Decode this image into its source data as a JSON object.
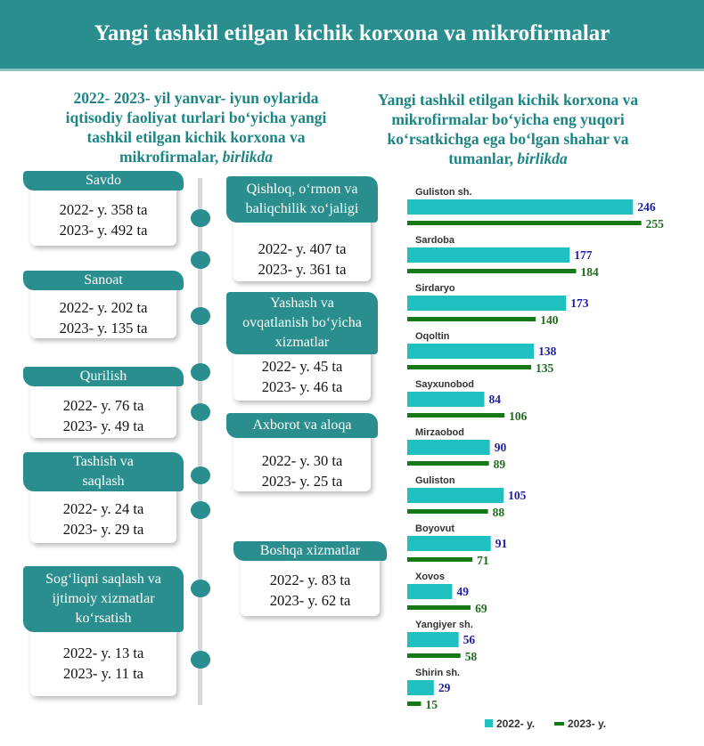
{
  "header": {
    "title": "Yangi tashkil etilgan kichik korxona va mikrofirmalar"
  },
  "left_heading": {
    "lines": [
      "2022- 2023- yil yanvar- iyun oylarida",
      "iqtisodiy faoliyat turlari bo‘yicha yangi",
      "tashkil etilgan kichik korxona va"
    ],
    "last_line": "mikrofirmalar,",
    "unit": "birlikda"
  },
  "right_heading": {
    "lines": [
      "Yangi tashkil etilgan kichik korxona va",
      "mikrofirmalar bo‘yicha eng yuqori",
      "ko‘rsatkichga ega bo‘lgan shahar va"
    ],
    "last_line": "tumanlar,",
    "unit": "birlikda"
  },
  "activities": [
    {
      "title": [
        "Savdo"
      ],
      "v2022": "2022- y. 358 ta",
      "v2023": "2023- y. 492 ta"
    },
    {
      "title": [
        "Qishloq, o‘rmon va",
        "baliqchilik xo‘jaligi"
      ],
      "v2022": "2022- y. 407 ta",
      "v2023": "2023- y. 361 ta"
    },
    {
      "title": [
        "Sanoat"
      ],
      "v2022": "2022- y. 202 ta",
      "v2023": "2023- y. 135 ta"
    },
    {
      "title": [
        "Yashash va",
        "ovqatlanish bo‘yicha",
        "xizmatlar"
      ],
      "v2022": "2022- y. 45 ta",
      "v2023": "2023- y. 46 ta"
    },
    {
      "title": [
        "Qurilish"
      ],
      "v2022": "2022- y. 76 ta",
      "v2023": "2023- y. 49 ta"
    },
    {
      "title": [
        "Axborot va aloqa"
      ],
      "v2022": "2022- y. 30 ta",
      "v2023": "2023- y. 25 ta"
    },
    {
      "title": [
        "Tashish va",
        "saqlash"
      ],
      "v2022": "2022- y. 24 ta",
      "v2023": "2023- y. 29 ta"
    },
    {
      "title": [
        "Boshqa xizmatlar"
      ],
      "v2022": "2022- y. 83 ta",
      "v2023": "2023- y. 62 ta"
    },
    {
      "title": [
        "Sog‘liqni saqlash va",
        "ijtimoiy xizmatlar",
        "ko‘rsatish"
      ],
      "v2022": "2022- y. 13 ta",
      "v2023": "2023- y. 11 ta"
    }
  ],
  "colors": {
    "teal": "#2b8e8e",
    "bar_2022": "#21c0c0",
    "bar_2023": "#157a15",
    "label_2022": "#1f1fa0",
    "label_2023": "#1d6d1d"
  },
  "chart_data": {
    "type": "bar",
    "orientation": "horizontal",
    "categories": [
      "Guliston sh.",
      "Sardoba",
      "Sirdaryo",
      "Oqoltin",
      "Sayxunobod",
      "Mirzaobod",
      "Guliston",
      "Boyovut",
      "Xovos",
      "Yangiyer sh.",
      "Shirin sh."
    ],
    "series": [
      {
        "name": "2022- y.",
        "values": [
          246,
          177,
          173,
          138,
          84,
          90,
          105,
          91,
          49,
          56,
          29
        ]
      },
      {
        "name": "2023- y.",
        "values": [
          255,
          184,
          140,
          135,
          106,
          89,
          88,
          71,
          69,
          58,
          15
        ]
      }
    ],
    "legend": "bottom",
    "grid": false
  }
}
